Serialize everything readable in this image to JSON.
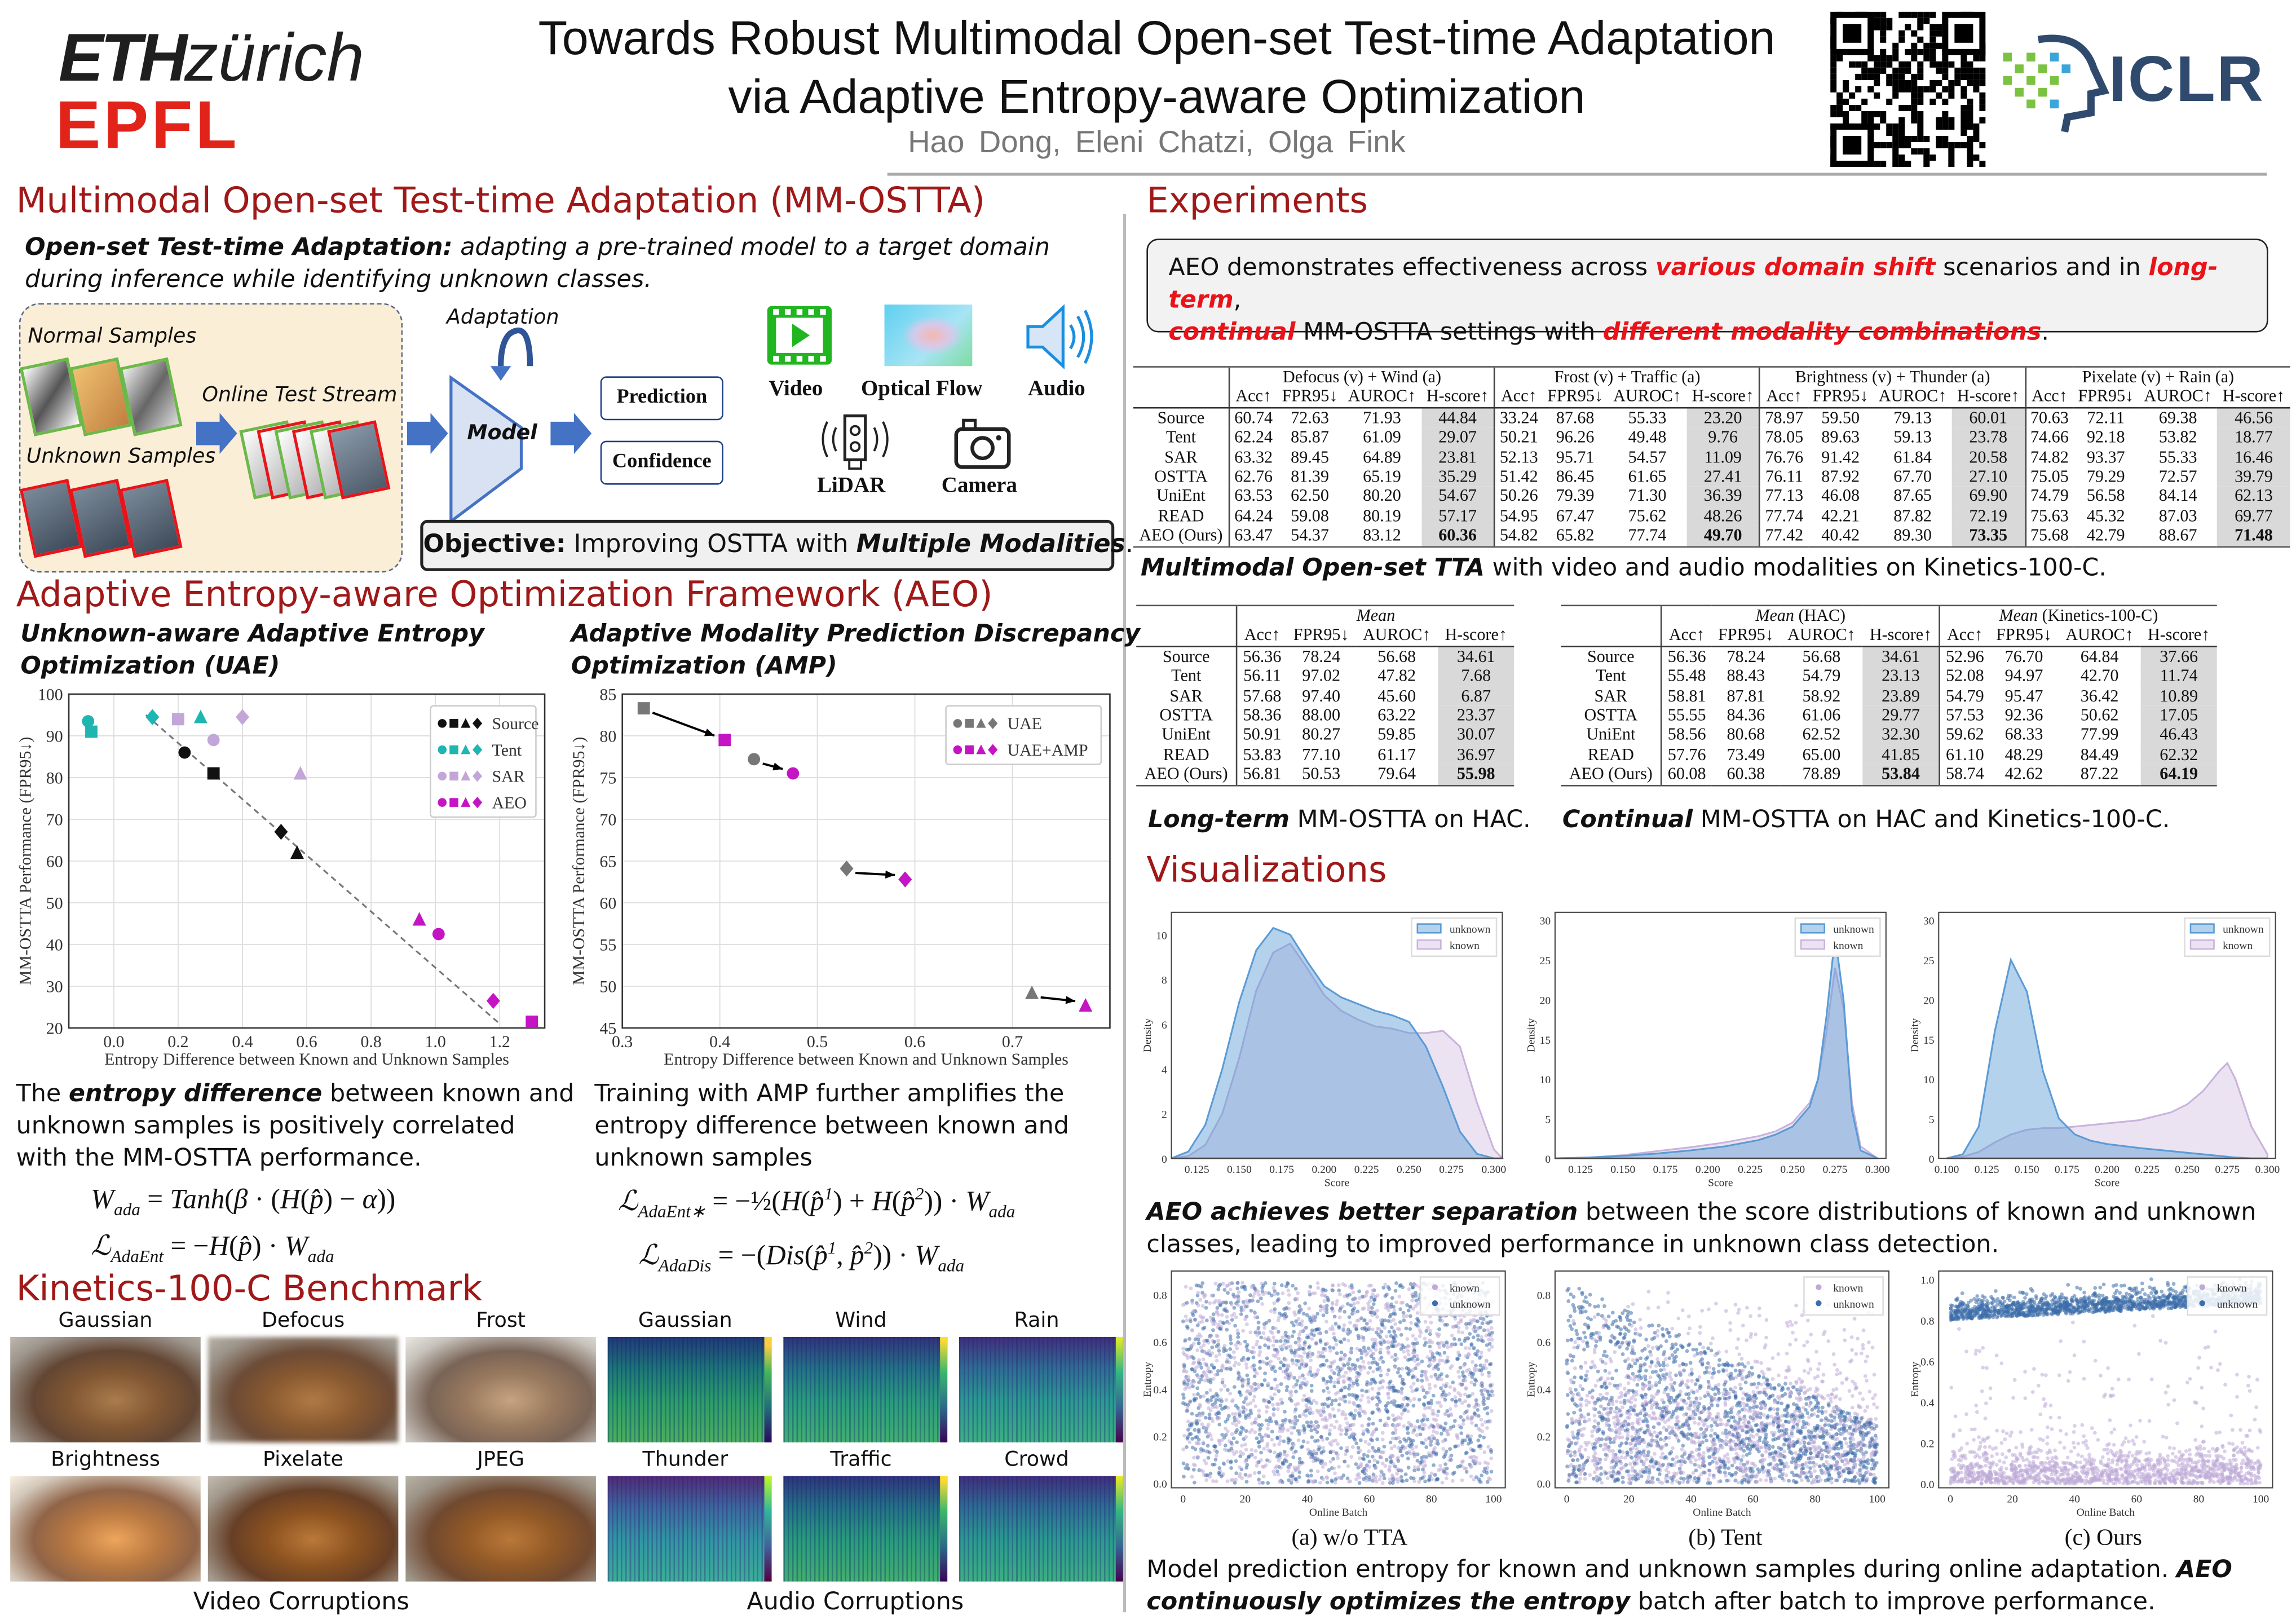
{
  "header": {
    "eth": "ETH",
    "zurich": "zürich",
    "epfl": "EPFL",
    "title_line1": "Towards Robust Multimodal Open-set Test-time Adaptation",
    "title_line2": "via Adaptive Entropy-aware Optimization",
    "authors": [
      "Hao Dong,",
      "Eleni Chatzi,",
      "Olga Fink"
    ],
    "iclr": "ICLR"
  },
  "intro": {
    "title": "Multimodal Open-set Test-time Adaptation (MM-OSTTA)",
    "def_bold": "Open-set Test-time Adaptation:",
    "def_rest": " adapting a pre-trained model to a target domain",
    "def_line2": "during inference while identifying unknown classes.",
    "diagram": {
      "normal": "Normal Samples",
      "stream": "Online Test Stream",
      "unknown": "Unknown Samples",
      "adaptation": "Adaptation",
      "model": "Model",
      "prediction": "Prediction",
      "confidence": "Confidence",
      "video": "Video",
      "flow": "Optical Flow",
      "audio": "Audio",
      "lidar": "LiDAR",
      "camera": "Camera"
    },
    "objective_bold": "Objective:",
    "objective_text": " Improving OSTTA with ",
    "objective_italic": "Multiple Modalities",
    "objective_end": "."
  },
  "aeo": {
    "title": "Adaptive Entropy-aware Optimization Framework (AEO)",
    "uae_l1": "Unknown-aware Adaptive Entropy",
    "uae_l2": "Optimization (UAE)",
    "amp_l1": "Adaptive Modality Prediction Discrepancy",
    "amp_l2": "Optimization (AMP)",
    "cap_left": [
      "The ",
      "entropy difference",
      " between known and",
      "unknown samples is positively correlated",
      "with the MM-OSTTA performance."
    ],
    "cap_right": [
      "Training with AMP further amplifies the",
      "entropy difference between known and",
      "unknown samples"
    ]
  },
  "chart_data": [
    {
      "type": "scatter",
      "xlabel": "Entropy Difference between Known and Unknown Samples",
      "ylabel": "MM-OSTTA Performance (FPR95↓)",
      "xlim": [
        -0.14,
        1.34
      ],
      "ylim": [
        20,
        100
      ],
      "xticks": [
        0.0,
        0.2,
        0.4,
        0.6,
        0.8,
        1.0,
        1.2
      ],
      "yticks": [
        20,
        30,
        40,
        50,
        60,
        70,
        80,
        90,
        100
      ],
      "legend": "top-right",
      "series": [
        {
          "name": "Source",
          "color": "#111111",
          "points": [
            {
              "m": "circle",
              "x": 0.22,
              "y": 86
            },
            {
              "m": "square",
              "x": 0.31,
              "y": 81
            },
            {
              "m": "diamond",
              "x": 0.52,
              "y": 67
            },
            {
              "m": "triangle",
              "x": 0.57,
              "y": 62
            }
          ]
        },
        {
          "name": "Tent",
          "color": "#1fb5b0",
          "points": [
            {
              "m": "circle",
              "x": -0.08,
              "y": 93.5
            },
            {
              "m": "square",
              "x": -0.07,
              "y": 91
            },
            {
              "m": "diamond",
              "x": 0.12,
              "y": 94.5
            },
            {
              "m": "triangle",
              "x": 0.27,
              "y": 94.5
            }
          ]
        },
        {
          "name": "SAR",
          "color": "#c3a6d8",
          "points": [
            {
              "m": "square",
              "x": 0.2,
              "y": 94
            },
            {
              "m": "circle",
              "x": 0.31,
              "y": 89
            },
            {
              "m": "diamond",
              "x": 0.4,
              "y": 94.5
            },
            {
              "m": "triangle",
              "x": 0.58,
              "y": 81
            }
          ]
        },
        {
          "name": "AEO",
          "color": "#c414c4",
          "points": [
            {
              "m": "triangle",
              "x": 0.95,
              "y": 46
            },
            {
              "m": "circle",
              "x": 1.01,
              "y": 42.5
            },
            {
              "m": "diamond",
              "x": 1.18,
              "y": 26.5
            },
            {
              "m": "square",
              "x": 1.3,
              "y": 21.5
            }
          ]
        }
      ],
      "trend": [
        [
          0.1,
          95
        ],
        [
          1.2,
          21
        ]
      ]
    },
    {
      "type": "scatter",
      "xlabel": "Entropy Difference between Known and Unknown Samples",
      "ylabel": "MM-OSTTA Performance (FPR95↓)",
      "xlim": [
        0.3,
        0.8
      ],
      "ylim": [
        45,
        85
      ],
      "xticks": [
        0.3,
        0.4,
        0.5,
        0.6,
        0.7
      ],
      "yticks": [
        45,
        50,
        55,
        60,
        65,
        70,
        75,
        80,
        85
      ],
      "legend": "top-right",
      "series": [
        {
          "name": "UAE",
          "color": "#777777",
          "points": [
            {
              "m": "square",
              "x": 0.322,
              "y": 83.3
            },
            {
              "m": "circle",
              "x": 0.435,
              "y": 77.2
            },
            {
              "m": "diamond",
              "x": 0.53,
              "y": 64.1
            },
            {
              "m": "triangle",
              "x": 0.72,
              "y": 49.2
            }
          ]
        },
        {
          "name": "UAE+AMP",
          "color": "#c414c4",
          "points": [
            {
              "m": "square",
              "x": 0.405,
              "y": 79.5
            },
            {
              "m": "circle",
              "x": 0.475,
              "y": 75.5
            },
            {
              "m": "diamond",
              "x": 0.59,
              "y": 62.8
            },
            {
              "m": "triangle",
              "x": 0.775,
              "y": 47.7
            }
          ]
        }
      ]
    },
    {
      "type": "area",
      "title": "",
      "xlabel": "Score",
      "ylabel": "Density",
      "xlim": [
        0.11,
        0.305
      ],
      "ylim": [
        0,
        11
      ],
      "xticks": [
        0.125,
        0.15,
        0.175,
        0.2,
        0.225,
        0.25,
        0.275,
        0.3
      ],
      "yticks": [
        0,
        2,
        4,
        6,
        8,
        10
      ],
      "legend": "top-right",
      "x": [
        0.11,
        0.12,
        0.13,
        0.14,
        0.15,
        0.16,
        0.17,
        0.18,
        0.19,
        0.2,
        0.21,
        0.22,
        0.23,
        0.24,
        0.25,
        0.26,
        0.27,
        0.28,
        0.29,
        0.3,
        0.305
      ],
      "series": [
        {
          "name": "unknown",
          "values": [
            0,
            0.3,
            1.5,
            4,
            7,
            9.3,
            10.3,
            10,
            8.8,
            7.7,
            7.2,
            6.9,
            6.6,
            6.4,
            6.1,
            5,
            3.2,
            1.2,
            0.2,
            0,
            0
          ]
        },
        {
          "name": "known",
          "values": [
            0,
            0.1,
            0.6,
            2,
            4.5,
            7.5,
            9.2,
            9.6,
            8.5,
            7.3,
            6.6,
            6.2,
            5.9,
            5.8,
            5.6,
            5.6,
            5.7,
            5,
            2.5,
            0.4,
            0
          ]
        }
      ]
    },
    {
      "type": "area",
      "xlabel": "Score",
      "ylabel": "Density",
      "xlim": [
        0.11,
        0.305
      ],
      "ylim": [
        0,
        31
      ],
      "xticks": [
        0.125,
        0.15,
        0.175,
        0.2,
        0.225,
        0.25,
        0.275,
        0.3
      ],
      "yticks": [
        0,
        5,
        10,
        15,
        20,
        25,
        30
      ],
      "legend": "top-right",
      "x": [
        0.11,
        0.13,
        0.15,
        0.17,
        0.19,
        0.21,
        0.23,
        0.24,
        0.25,
        0.26,
        0.265,
        0.27,
        0.275,
        0.28,
        0.285,
        0.29,
        0.3
      ],
      "series": [
        {
          "name": "unknown",
          "values": [
            0,
            0.1,
            0.3,
            0.6,
            1,
            1.5,
            2.3,
            3,
            4,
            6.5,
            10,
            18,
            28,
            20,
            6,
            1,
            0
          ]
        },
        {
          "name": "known",
          "values": [
            0,
            0.1,
            0.4,
            0.9,
            1.4,
            2,
            2.8,
            3.4,
            4.5,
            7,
            10,
            16,
            24,
            19,
            7,
            1.5,
            0
          ]
        }
      ]
    },
    {
      "type": "area",
      "xlabel": "Score",
      "ylabel": "Density",
      "xlim": [
        0.095,
        0.305
      ],
      "ylim": [
        0,
        31
      ],
      "xticks": [
        0.1,
        0.125,
        0.15,
        0.175,
        0.2,
        0.225,
        0.25,
        0.275,
        0.3
      ],
      "yticks": [
        0,
        5,
        10,
        15,
        20,
        25,
        30
      ],
      "legend": "top-right",
      "x": [
        0.1,
        0.11,
        0.12,
        0.13,
        0.14,
        0.15,
        0.16,
        0.17,
        0.18,
        0.19,
        0.2,
        0.22,
        0.24,
        0.25,
        0.26,
        0.27,
        0.275,
        0.28,
        0.29,
        0.3
      ],
      "series": [
        {
          "name": "unknown",
          "values": [
            0,
            0.5,
            4,
            16,
            25,
            21,
            11,
            5,
            3,
            2.2,
            1.8,
            1.3,
            0.9,
            0.7,
            0.5,
            0.3,
            0.2,
            0.1,
            0,
            0
          ]
        },
        {
          "name": "known",
          "values": [
            0,
            0.2,
            0.8,
            2,
            3,
            3.6,
            3.8,
            3.8,
            4,
            4.2,
            4.4,
            4.8,
            5.8,
            6.8,
            8.5,
            11,
            12,
            10,
            4,
            0.5
          ]
        }
      ]
    }
  ],
  "entropy_plots": [
    {
      "caption": "(a) w/o TTA",
      "xlabel": "Online Batch",
      "ylabel": "Entropy",
      "legend": [
        "known",
        "unknown"
      ],
      "xticks": [
        0,
        20,
        40,
        60,
        80,
        100
      ],
      "yticks": [
        0.0,
        0.2,
        0.4,
        0.6,
        0.8
      ]
    },
    {
      "caption": "(b) Tent",
      "xlabel": "Online Batch",
      "ylabel": "Entropy",
      "legend": [
        "known",
        "unknown"
      ],
      "xticks": [
        0,
        20,
        40,
        60,
        80,
        100
      ],
      "yticks": [
        0.0,
        0.2,
        0.4,
        0.6,
        0.8
      ]
    },
    {
      "caption": "(c) Ours",
      "xlabel": "Online Batch",
      "ylabel": "Entropy",
      "legend": [
        "known",
        "unknown"
      ],
      "xticks": [
        0,
        20,
        40,
        60,
        80,
        100
      ],
      "yticks": [
        0.0,
        0.2,
        0.4,
        0.6,
        0.8,
        1.0
      ]
    }
  ],
  "kinetics": {
    "title": "Kinetics-100-C Benchmark",
    "video": [
      "Gaussian",
      "Defocus",
      "Frost",
      "Brightness",
      "Pixelate",
      "JPEG"
    ],
    "audio": [
      "Gaussian",
      "Wind",
      "Rain",
      "Thunder",
      "Traffic",
      "Crowd"
    ],
    "video_caption": "Video Corruptions",
    "audio_caption": "Audio Corruptions"
  },
  "experiments": {
    "title": "Experiments",
    "box": [
      "AEO demonstrates effectiveness across ",
      "various domain shift",
      " scenarios and in ",
      "long-term",
      ",",
      "continual",
      " MM-OSTTA settings with ",
      "different modality combinations",
      "."
    ],
    "cap1_i": "Multimodal Open-set TTA",
    "cap1_r": " with video and audio modalities on Kinetics-100-C.",
    "cap2_i": "Long-term",
    "cap2_r": " MM-OSTTA on HAC.",
    "cap3_i": "Continual",
    "cap3_r": " MM-OSTTA on HAC and Kinetics-100-C."
  },
  "table1": {
    "groups": [
      {
        "i": "",
        "r": "Defocus (v) + Wind (a)"
      },
      {
        "i": "",
        "r": "Frost (v) + Traffic (a)"
      },
      {
        "i": "",
        "r": "Brightness (v) + Thunder (a)"
      },
      {
        "i": "",
        "r": "Pixelate (v) + Rain (a)"
      }
    ],
    "metrics": [
      "Acc↑",
      "FPR95↓",
      "AUROC↑",
      "H-score↑"
    ],
    "rows": [
      {
        "method": "Source",
        "values": [
          "60.74",
          "72.63",
          "71.93",
          "44.84",
          "33.24",
          "87.68",
          "55.33",
          "23.20",
          "78.97",
          "59.50",
          "79.13",
          "60.01",
          "70.63",
          "72.11",
          "69.38",
          "46.56"
        ]
      },
      {
        "method": "Tent",
        "values": [
          "62.24",
          "85.87",
          "61.09",
          "29.07",
          "50.21",
          "96.26",
          "49.48",
          "9.76",
          "78.05",
          "89.63",
          "59.13",
          "23.78",
          "74.66",
          "92.18",
          "53.82",
          "18.77"
        ]
      },
      {
        "method": "SAR",
        "values": [
          "63.32",
          "89.45",
          "64.89",
          "23.81",
          "52.13",
          "95.71",
          "54.57",
          "11.09",
          "76.76",
          "91.42",
          "61.84",
          "20.58",
          "74.82",
          "93.37",
          "55.33",
          "16.46"
        ]
      },
      {
        "method": "OSTTA",
        "values": [
          "62.76",
          "81.39",
          "65.19",
          "35.29",
          "51.42",
          "86.45",
          "61.65",
          "27.41",
          "76.11",
          "87.92",
          "67.70",
          "27.10",
          "75.05",
          "79.29",
          "72.57",
          "39.79"
        ]
      },
      {
        "method": "UniEnt",
        "values": [
          "63.53",
          "62.50",
          "80.20",
          "54.67",
          "50.26",
          "79.39",
          "71.30",
          "36.39",
          "77.13",
          "46.08",
          "87.65",
          "69.90",
          "74.79",
          "56.58",
          "84.14",
          "62.13"
        ]
      },
      {
        "method": "READ",
        "values": [
          "64.24",
          "59.08",
          "80.19",
          "57.17",
          "54.95",
          "67.47",
          "75.62",
          "48.26",
          "77.74",
          "42.21",
          "87.82",
          "72.19",
          "75.63",
          "45.32",
          "87.03",
          "69.77"
        ]
      },
      {
        "method": "AEO (Ours)",
        "values": [
          "63.47",
          "54.37",
          "83.12",
          "60.36",
          "54.82",
          "65.82",
          "77.74",
          "49.70",
          "77.42",
          "40.42",
          "89.30",
          "73.35",
          "75.68",
          "42.79",
          "88.67",
          "71.48"
        ]
      }
    ]
  },
  "table2": {
    "groups": [
      {
        "i": "Mean",
        "r": ""
      }
    ],
    "metrics": [
      "Acc↑",
      "FPR95↓",
      "AUROC↑",
      "H-score↑"
    ],
    "rows": [
      {
        "method": "Source",
        "values": [
          "56.36",
          "78.24",
          "56.68",
          "34.61"
        ]
      },
      {
        "method": "Tent",
        "values": [
          "56.11",
          "97.02",
          "47.82",
          "7.68"
        ]
      },
      {
        "method": "SAR",
        "values": [
          "57.68",
          "97.40",
          "45.60",
          "6.87"
        ]
      },
      {
        "method": "OSTTA",
        "values": [
          "58.36",
          "88.00",
          "63.22",
          "23.37"
        ]
      },
      {
        "method": "UniEnt",
        "values": [
          "50.91",
          "80.27",
          "59.85",
          "30.07"
        ]
      },
      {
        "method": "READ",
        "values": [
          "53.83",
          "77.10",
          "61.17",
          "36.97"
        ]
      },
      {
        "method": "AEO (Ours)",
        "values": [
          "56.81",
          "50.53",
          "79.64",
          "55.98"
        ]
      }
    ]
  },
  "table3": {
    "groups": [
      {
        "i": "Mean",
        "r": " (HAC)"
      },
      {
        "i": "Mean",
        "r": " (Kinetics-100-C)"
      }
    ],
    "metrics": [
      "Acc↑",
      "FPR95↓",
      "AUROC↑",
      "H-score↑"
    ],
    "rows": [
      {
        "method": "Source",
        "values": [
          "56.36",
          "78.24",
          "56.68",
          "34.61",
          "52.96",
          "76.70",
          "64.84",
          "37.66"
        ]
      },
      {
        "method": "Tent",
        "values": [
          "55.48",
          "88.43",
          "54.79",
          "23.13",
          "52.08",
          "94.97",
          "42.70",
          "11.74"
        ]
      },
      {
        "method": "SAR",
        "values": [
          "58.81",
          "87.81",
          "58.92",
          "23.89",
          "54.79",
          "95.47",
          "36.42",
          "10.89"
        ]
      },
      {
        "method": "OSTTA",
        "values": [
          "55.55",
          "84.36",
          "61.06",
          "29.77",
          "57.53",
          "92.36",
          "50.62",
          "17.05"
        ]
      },
      {
        "method": "UniEnt",
        "values": [
          "58.56",
          "80.68",
          "62.52",
          "32.30",
          "59.62",
          "68.33",
          "77.99",
          "46.43"
        ]
      },
      {
        "method": "READ",
        "values": [
          "57.76",
          "73.49",
          "65.00",
          "41.85",
          "61.10",
          "48.29",
          "84.49",
          "62.32"
        ]
      },
      {
        "method": "AEO (Ours)",
        "values": [
          "60.08",
          "60.38",
          "78.89",
          "53.84",
          "58.74",
          "42.62",
          "87.22",
          "64.19"
        ]
      }
    ]
  },
  "visualizations": {
    "title": "Visualizations",
    "cap1_b": "AEO achieves better separation",
    "cap1_r": " between the score distributions of known and unknown",
    "cap1_l2": "classes, leading to improved performance in unknown class detection.",
    "cap2_l1a": "Model prediction entropy for known and unknown samples during online adaptation. ",
    "cap2_l1b": "AEO",
    "cap2_l2b": "continuously optimizes the entropy",
    "cap2_l2r": " batch after batch to improve performance."
  },
  "colors": {
    "accent": "#a01818",
    "blue": "#4472c4",
    "unknown": "#5b9bd5",
    "known": "#d9c8e6"
  }
}
